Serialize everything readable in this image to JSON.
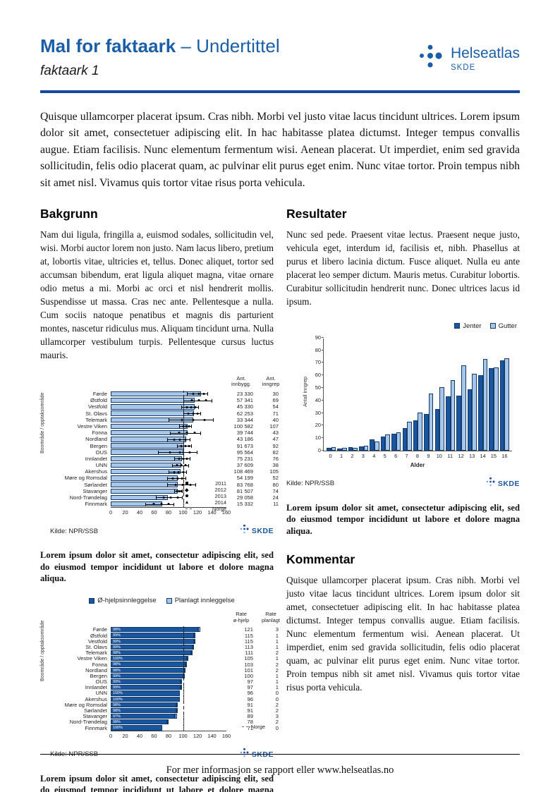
{
  "header": {
    "title_main": "Mal for faktaark",
    "title_sub": " – Undertittel",
    "subtitle": "faktaark 1",
    "logo": {
      "name": "Helseatlas",
      "org": "SKDE"
    }
  },
  "icons": {
    "helseatlas_logo": "helseatlas-dots-icon",
    "skde_mark": "skde-dots-icon"
  },
  "colors": {
    "brand_blue": "#1b5ea8",
    "divider_blue": "#17479e",
    "bar_dark": "#1a56a0",
    "bar_light": "#a8c7e8",
    "bar_border": "#123a6b"
  },
  "intro": "Quisque ullamcorper placerat ipsum. Cras nibh. Morbi vel justo vitae lacus tincidunt ultrices. Lorem ipsum dolor sit amet, consectetuer adipiscing elit. In hac habitasse platea dictumst. Integer tempus convallis augue. Etiam facilisis. Nunc elementum fermentum wisi. Aenean placerat. Ut imperdiet, enim sed gravida sollicitudin, felis odio placerat quam, ac pulvinar elit purus eget enim. Nunc vitae tortor. Proin tempus nibh sit amet nisl. Vivamus quis tortor vitae risus porta vehicula.",
  "sections": {
    "bakgrunn": {
      "heading": "Bakgrunn",
      "body": "Nam dui ligula, fringilla a, euismod sodales, sollicitudin vel, wisi. Morbi auctor lorem non justo. Nam lacus libero, pretium at, lobortis vitae, ultricies et, tellus. Donec aliquet, tortor sed accumsan bibendum, erat ligula aliquet magna, vitae ornare odio metus a mi. Morbi ac orci et nisl hendrerit mollis. Suspendisse ut massa. Cras nec ante. Pellentesque a nulla. Cum sociis natoque penatibus et magnis dis parturient montes, nascetur ridiculus mus. Aliquam tincidunt urna. Nulla ullamcorper vestibulum turpis. Pellentesque cursus luctus mauris."
    },
    "resultater": {
      "heading": "Resultater",
      "body": "Nunc sed pede. Praesent vitae lectus. Praesent neque justo, vehicula eget, interdum id, facilisis et, nibh. Phasellus at purus et libero lacinia dictum. Fusce aliquet. Nulla eu ante placerat leo semper dictum. Mauris metus. Curabitur lobortis. Curabitur sollicitudin hendrerit nunc. Donec ultrices lacus id ipsum."
    },
    "kommentar": {
      "heading": "Kommentar",
      "body": "Quisque ullamcorper placerat ipsum. Cras nibh. Morbi vel justo vitae lacus tincidunt ultrices. Lorem ipsum dolor sit amet, consectetuer adipiscing elit. In hac habitasse platea dictumst. Integer tempus convallis augue. Etiam facilisis. Nunc elementum fermentum wisi. Aenean placerat. Ut imperdiet, enim sed gravida sollicitudin, felis odio placerat quam, ac pulvinar elit purus eget enim. Nunc vitae tortor. Proin tempus nibh sit amet nisl. Vivamus quis tortor vitae risus porta vehicula."
    }
  },
  "captions": {
    "chart1": "Lorem ipsum dolor sit amet, consectetur adipiscing elit, sed do eiusmod tempor incididunt ut labore et dolore magna aliqua.",
    "chart2": "Lorem ipsum dolor sit amet, consectetur adipiscing elit, sed do eiusmod tempor incididunt ut labore et dolore magna aliqua.",
    "chart3": "Lorem ipsum dolor sit amet, consectetur adipiscing elit, sed do eiusmod tempor incididunt ut labore et dolore magna aliqua."
  },
  "skde_mark_label": "SKDE",
  "footer": {
    "text": "For mer informasjon se rapport eller www.helseatlas.no"
  },
  "chart_data": [
    {
      "type": "bar",
      "orientation": "horizontal",
      "y_axis_label": "Boområde / opptaksområde",
      "x_ticks": [
        0,
        20,
        40,
        60,
        80,
        100,
        120,
        140,
        160
      ],
      "xlim": [
        0,
        160
      ],
      "reference_line": {
        "label": "Norge",
        "value": 100
      },
      "columns": [
        "Ant.\ninnbygg.",
        "Ant.\ninngrep"
      ],
      "legend": [
        {
          "marker": "square",
          "label": "2011"
        },
        {
          "marker": "diamond",
          "label": "2012"
        },
        {
          "marker": "circle",
          "label": "2013"
        },
        {
          "marker": "triangle",
          "label": "2014"
        },
        {
          "marker": "dashed-line",
          "label": "Norge"
        }
      ],
      "kilde": "Kilde: NPR/SSB",
      "rows": [
        {
          "label": "Førde",
          "value": 125,
          "err_low": 105,
          "err_high": 135,
          "innbygg": "23 330",
          "inngrep": "30"
        },
        {
          "label": "Østfold",
          "value": 116,
          "err_low": 100,
          "err_high": 140,
          "innbygg": "57 341",
          "inngrep": "69"
        },
        {
          "label": "Vestfold",
          "value": 116,
          "err_low": 98,
          "err_high": 122,
          "innbygg": "45 330",
          "inngrep": "54"
        },
        {
          "label": "St. Olavs",
          "value": 115,
          "err_low": 100,
          "err_high": 125,
          "innbygg": "62 253",
          "inngrep": "71"
        },
        {
          "label": "Telemark",
          "value": 114,
          "err_low": 80,
          "err_high": 142,
          "innbygg": "33 344",
          "inngrep": "40"
        },
        {
          "label": "Vestre Viken",
          "value": 106,
          "err_low": 95,
          "err_high": 112,
          "innbygg": "100 582",
          "inngrep": "107"
        },
        {
          "label": "Fonna",
          "value": 106,
          "err_low": 82,
          "err_high": 125,
          "innbygg": "39 744",
          "inngrep": "43"
        },
        {
          "label": "Nordland",
          "value": 104,
          "err_low": 78,
          "err_high": 110,
          "innbygg": "43 186",
          "inngrep": "47"
        },
        {
          "label": "Bergen",
          "value": 101,
          "err_low": 92,
          "err_high": 112,
          "innbygg": "91 673",
          "inngrep": "92"
        },
        {
          "label": "OUS",
          "value": 100,
          "err_low": 65,
          "err_high": 120,
          "innbygg": "95 564",
          "inngrep": "82"
        },
        {
          "label": "Innlandet",
          "value": 99,
          "err_low": 88,
          "err_high": 110,
          "innbygg": "75 231",
          "inngrep": "76"
        },
        {
          "label": "UNN",
          "value": 98,
          "err_low": 85,
          "err_high": 108,
          "innbygg": "37 609",
          "inngrep": "38"
        },
        {
          "label": "Akershus",
          "value": 97,
          "err_low": 80,
          "err_high": 105,
          "innbygg": "108 469",
          "inngrep": "105"
        },
        {
          "label": "Møre og Romsdal",
          "value": 93,
          "err_low": 78,
          "err_high": 104,
          "innbygg": "54 199",
          "inngrep": "52"
        },
        {
          "label": "Sørlandet",
          "value": 93,
          "err_low": 78,
          "err_high": 118,
          "innbygg": "83 768",
          "inngrep": "80"
        },
        {
          "label": "Stavanger",
          "value": 93,
          "err_low": 88,
          "err_high": 100,
          "innbygg": "81 507",
          "inngrep": "74"
        },
        {
          "label": "Nord-Trøndelag",
          "value": 79,
          "err_low": 62,
          "err_high": 100,
          "innbygg": "29 058",
          "inngrep": "24"
        },
        {
          "label": "Finnmark",
          "value": 71,
          "err_low": 48,
          "err_high": 88,
          "innbygg": "15 332",
          "inngrep": "11"
        }
      ]
    },
    {
      "type": "bar",
      "orientation": "horizontal-stacked",
      "y_axis_label": "Boområde / opptaksområde",
      "x_ticks": [
        0,
        20,
        40,
        60,
        80,
        100,
        120,
        140,
        160
      ],
      "xlim": [
        0,
        160
      ],
      "reference": {
        "label": "Norge",
        "value": 100
      },
      "legend": [
        "Ø-hjelpsinnleggelse",
        "Planlagt innleggelse"
      ],
      "columns": [
        "Rate\nø-hjelp",
        "Rate\nplanlagt"
      ],
      "kilde": "Kilde: NPR/SSB",
      "rows": [
        {
          "label": "Førde",
          "pct": "98%",
          "ohjelp": 121,
          "planlagt": 3
        },
        {
          "label": "Østfold",
          "pct": "99%",
          "ohjelp": 115,
          "planlagt": 1
        },
        {
          "label": "Vestfold",
          "pct": "99%",
          "ohjelp": 115,
          "planlagt": 1
        },
        {
          "label": "St. Olavs",
          "pct": "99%",
          "ohjelp": 113,
          "planlagt": 1
        },
        {
          "label": "Telemark",
          "pct": "98%",
          "ohjelp": 111,
          "planlagt": 2
        },
        {
          "label": "Vestre Viken",
          "pct": "100%",
          "ohjelp": 105,
          "planlagt": 1
        },
        {
          "label": "Fonna",
          "pct": "98%",
          "ohjelp": 103,
          "planlagt": 2
        },
        {
          "label": "Nordland",
          "pct": "98%",
          "ohjelp": 101,
          "planlagt": 2
        },
        {
          "label": "Bergen",
          "pct": "99%",
          "ohjelp": 100,
          "planlagt": 1
        },
        {
          "label": "OUS",
          "pct": "99%",
          "ohjelp": 97,
          "planlagt": 1
        },
        {
          "label": "Innlandet",
          "pct": "99%",
          "ohjelp": 97,
          "planlagt": 1
        },
        {
          "label": "UNN",
          "pct": "100%",
          "ohjelp": 96,
          "planlagt": 0
        },
        {
          "label": "Akershus",
          "pct": "100%",
          "ohjelp": 96,
          "planlagt": 0
        },
        {
          "label": "Møre og Romsdal",
          "pct": "98%",
          "ohjelp": 91,
          "planlagt": 2
        },
        {
          "label": "Sørlandet",
          "pct": "98%",
          "ohjelp": 91,
          "planlagt": 2
        },
        {
          "label": "Stavanger",
          "pct": "97%",
          "ohjelp": 89,
          "planlagt": 3
        },
        {
          "label": "Nord-Trøndelag",
          "pct": "98%",
          "ohjelp": 78,
          "planlagt": 2
        },
        {
          "label": "Finnmark",
          "pct": "100%",
          "ohjelp": 71,
          "planlagt": 0
        }
      ]
    },
    {
      "type": "bar",
      "orientation": "vertical-grouped",
      "xlabel": "Alder",
      "ylabel": "Antall inngrep",
      "ylim": [
        0,
        90
      ],
      "y_ticks": [
        0,
        10,
        20,
        30,
        40,
        50,
        60,
        70,
        80,
        90
      ],
      "categories": [
        "0",
        "1",
        "2",
        "3",
        "4",
        "5",
        "6",
        "7",
        "8",
        "9",
        "10",
        "11",
        "12",
        "13",
        "14",
        "15",
        "16"
      ],
      "series": [
        {
          "name": "Jenter",
          "values": [
            2,
            1.5,
            2.5,
            3.5,
            9,
            11,
            13.5,
            18,
            24,
            29,
            33,
            43.5,
            44,
            49,
            60,
            66,
            72
          ]
        },
        {
          "name": "Gutter",
          "values": [
            3,
            2,
            2,
            4,
            7,
            13,
            14.5,
            23,
            30.5,
            45.5,
            50.5,
            56,
            68,
            61,
            73,
            66.5,
            73.5
          ]
        }
      ],
      "kilde": "Kilde: NPR/SSB"
    }
  ]
}
